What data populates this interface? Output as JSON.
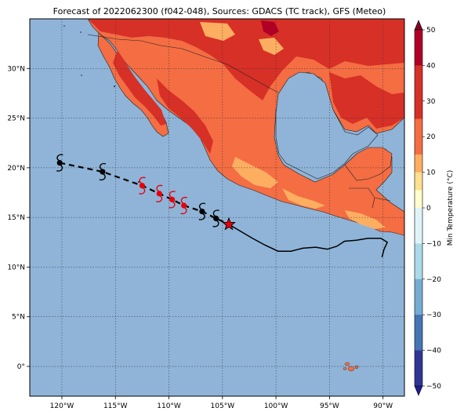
{
  "title": "Forecast of 2022062300 (f042-048), Sources: GDACS (TC track), GFS (Meteo)",
  "map": {
    "lon_range": [
      -123,
      -88
    ],
    "lat_range": [
      -3,
      35
    ],
    "lon_ticks": [
      {
        "value": -120,
        "label": "120°W"
      },
      {
        "value": -115,
        "label": "115°W"
      },
      {
        "value": -110,
        "label": "110°W"
      },
      {
        "value": -105,
        "label": "105°W"
      },
      {
        "value": -100,
        "label": "100°W"
      },
      {
        "value": -95,
        "label": "95°W"
      },
      {
        "value": -90,
        "label": "90°W"
      }
    ],
    "lat_ticks": [
      {
        "value": 0,
        "label": "0°"
      },
      {
        "value": 5,
        "label": "5°N"
      },
      {
        "value": 10,
        "label": "10°N"
      },
      {
        "value": 15,
        "label": "15°N"
      },
      {
        "value": 20,
        "label": "20°N"
      },
      {
        "value": 25,
        "label": "25°N"
      },
      {
        "value": 30,
        "label": "30°N"
      }
    ],
    "ocean_color": "#8fb4d8",
    "grid": true
  },
  "colorbar": {
    "label": "Min Temperature (°C)",
    "ticks": [
      "50",
      "40",
      "30",
      "20",
      "10",
      "0",
      "−10",
      "−20",
      "−30",
      "−40",
      "−50"
    ],
    "colors": [
      "#800026",
      "#b10026",
      "#d73027",
      "#f46d43",
      "#fdae61",
      "#fee090",
      "#ffffcc",
      "#e0f3f8",
      "#abd9e9",
      "#74add1",
      "#4575b4",
      "#313695",
      "#1f1f8f"
    ]
  },
  "track": {
    "observed_color": "#000000",
    "forecast_points": [
      {
        "lon": -120.2,
        "lat": 20.5,
        "color": "#000000"
      },
      {
        "lon": -116.2,
        "lat": 19.6,
        "color": "#000000"
      },
      {
        "lon": -112.5,
        "lat": 18.2,
        "color": "#e8000b"
      },
      {
        "lon": -110.9,
        "lat": 17.4,
        "color": "#e8000b"
      },
      {
        "lon": -109.7,
        "lat": 16.8,
        "color": "#e8000b"
      },
      {
        "lon": -108.6,
        "lat": 16.2,
        "color": "#e8000b"
      },
      {
        "lon": -106.9,
        "lat": 15.6,
        "color": "#000000"
      },
      {
        "lon": -105.6,
        "lat": 14.9,
        "color": "#000000"
      }
    ],
    "current_position": {
      "lon": -104.4,
      "lat": 14.3,
      "color": "#e8000b"
    },
    "past_track": [
      [
        -104.4,
        14.3
      ],
      [
        -103.3,
        13.6
      ],
      [
        -102.2,
        12.9
      ],
      [
        -101,
        12.2
      ],
      [
        -99.8,
        11.6
      ],
      [
        -98.6,
        11.6
      ],
      [
        -97.5,
        11.9
      ],
      [
        -96.3,
        12.0
      ],
      [
        -95.2,
        11.8
      ],
      [
        -94.3,
        12.1
      ],
      [
        -93.6,
        12.6
      ],
      [
        -92.5,
        12.7
      ],
      [
        -91.4,
        12.9
      ],
      [
        -90.2,
        12.9
      ],
      [
        -89.6,
        12.5
      ],
      [
        -89.9,
        11.8
      ],
      [
        -90.1,
        11.0
      ]
    ]
  }
}
